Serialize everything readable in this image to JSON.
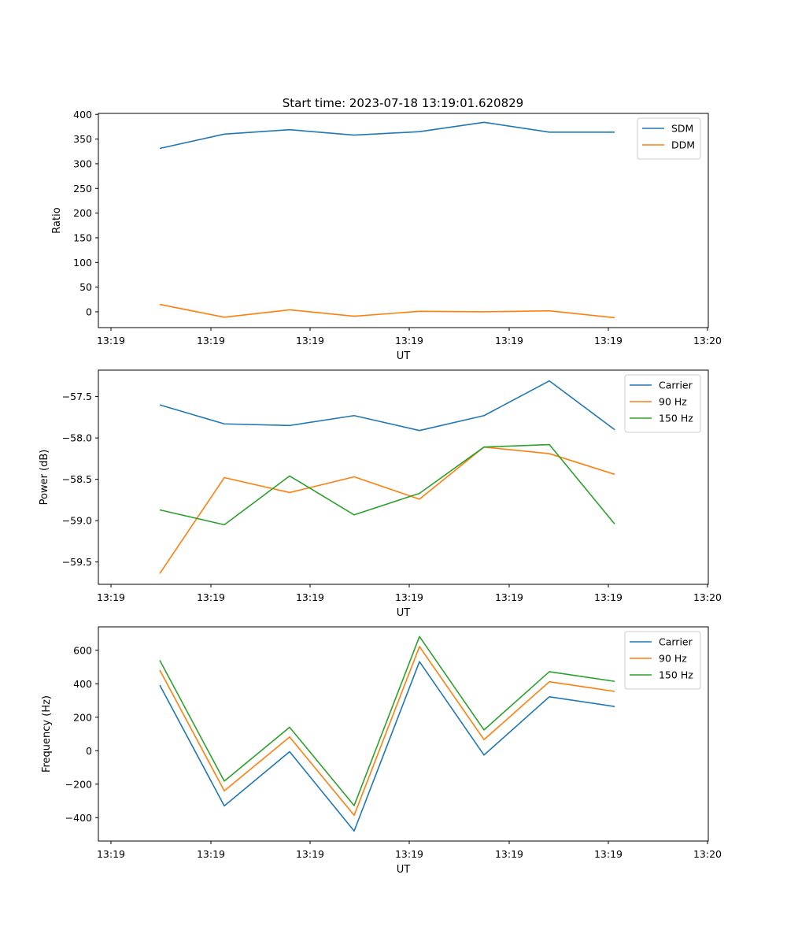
{
  "title": "Start time: 2023-07-18 13:19:01.620829",
  "chart_data": [
    {
      "type": "line",
      "ylabel": "Ratio",
      "xlabel": "UT",
      "ylim": [
        -32,
        402
      ],
      "yticks": [
        0,
        50,
        100,
        150,
        200,
        250,
        300,
        350,
        400
      ],
      "xtick_labels": [
        "13:19",
        "13:19",
        "13:19",
        "13:19",
        "13:19",
        "13:19",
        "13:19",
        "13:20"
      ],
      "legend": "top-right",
      "series": [
        {
          "name": "SDM",
          "color": "#1f77b4",
          "values": [
            331,
            360,
            369,
            358,
            365,
            384,
            364,
            364
          ]
        },
        {
          "name": "DDM",
          "color": "#ff7f0e",
          "values": [
            15,
            -11,
            4,
            -9,
            1,
            0,
            2,
            -12
          ]
        }
      ]
    },
    {
      "type": "line",
      "ylabel": "Power (dB)",
      "xlabel": "UT",
      "ylim": [
        -59.77,
        -57.18
      ],
      "yticks": [
        -57.5,
        -58.0,
        -58.5,
        -59.0,
        -59.5
      ],
      "ytick_labels": [
        "−57.5",
        "−58.0",
        "−58.5",
        "−59.0",
        "−59.5"
      ],
      "xtick_labels": [
        "13:19",
        "13:19",
        "13:19",
        "13:19",
        "13:19",
        "13:19",
        "13:19",
        "13:20"
      ],
      "legend": "top-right",
      "series": [
        {
          "name": "Carrier",
          "color": "#1f77b4",
          "values": [
            -57.6,
            -57.83,
            -57.85,
            -57.73,
            -57.91,
            -57.73,
            -57.31,
            -57.9
          ]
        },
        {
          "name": "90 Hz",
          "color": "#ff7f0e",
          "values": [
            -59.64,
            -58.48,
            -58.66,
            -58.47,
            -58.74,
            -58.11,
            -58.19,
            -58.44
          ]
        },
        {
          "name": "150 Hz",
          "color": "#2ca02c",
          "values": [
            -58.87,
            -59.05,
            -58.46,
            -58.93,
            -58.67,
            -58.11,
            -58.08,
            -59.04
          ]
        }
      ]
    },
    {
      "type": "line",
      "ylabel": "Frequency (Hz)",
      "xlabel": "UT",
      "ylim": [
        -540,
        740
      ],
      "yticks": [
        600,
        400,
        200,
        0,
        -200,
        -400
      ],
      "ytick_labels": [
        "600",
        "400",
        "200",
        "0",
        "−200",
        "−400"
      ],
      "xtick_labels": [
        "13:19",
        "13:19",
        "13:19",
        "13:19",
        "13:19",
        "13:19",
        "13:19",
        "13:20"
      ],
      "legend": "top-right",
      "series": [
        {
          "name": "Carrier",
          "color": "#1f77b4",
          "values": [
            392,
            -330,
            -6,
            -480,
            532,
            -26,
            322,
            264
          ]
        },
        {
          "name": "90 Hz",
          "color": "#ff7f0e",
          "values": [
            482,
            -240,
            82,
            -386,
            622,
            66,
            412,
            354
          ]
        },
        {
          "name": "150 Hz",
          "color": "#2ca02c",
          "values": [
            540,
            -182,
            140,
            -328,
            682,
            124,
            472,
            414
          ]
        }
      ]
    }
  ]
}
